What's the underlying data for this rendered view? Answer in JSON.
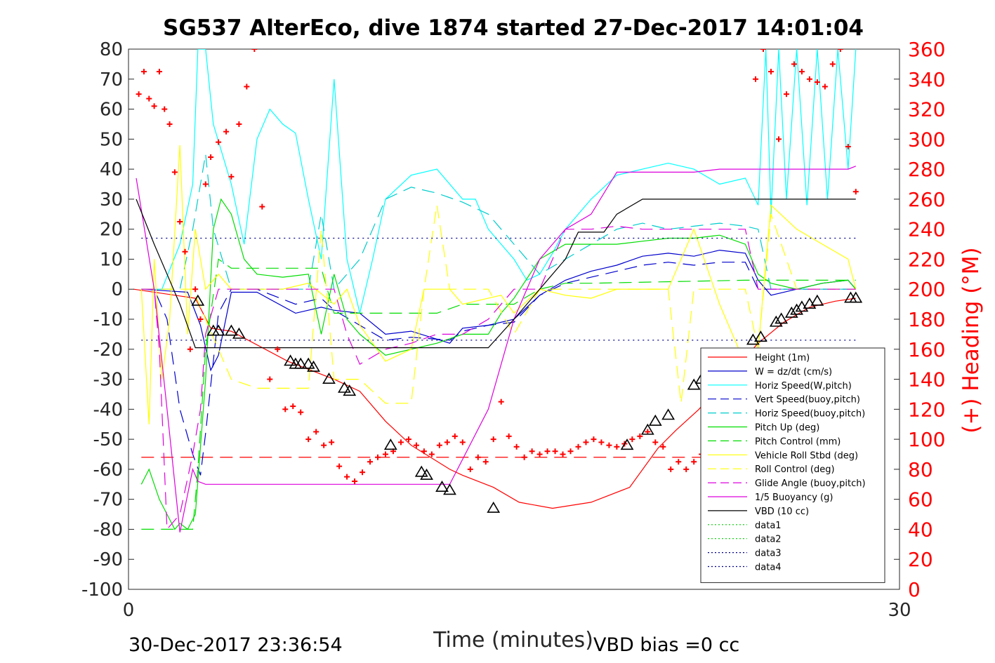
{
  "chart_data": {
    "type": "line",
    "title": "SG537 AlterEco, dive 1874 started 27-Dec-2017 14:01:04",
    "xlabel": "Time (minutes)",
    "ylabel_right": "(+) Heading (°M)",
    "xlim": [
      0,
      30
    ],
    "ylim": [
      -100,
      80
    ],
    "ylim_right": [
      0,
      360
    ],
    "x_ticks": [
      "0",
      "30"
    ],
    "y_ticks": [
      "80",
      "70",
      "60",
      "50",
      "40",
      "30",
      "20",
      "10",
      "0",
      "-10",
      "-20",
      "-30",
      "-40",
      "-50",
      "-60",
      "-70",
      "-80",
      "-90",
      "-100"
    ],
    "y_ticks_right": [
      "360",
      "340",
      "320",
      "300",
      "280",
      "260",
      "240",
      "220",
      "200",
      "180",
      "160",
      "140",
      "120",
      "100",
      "80",
      "60",
      "40",
      "20",
      "0"
    ],
    "footer_left": "30-Dec-2017 23:36:54",
    "footer_right": "VBD bias =0 cc",
    "legend_position": "lower-right",
    "series": [
      {
        "name": "Height (1m)",
        "color": "#ff0000",
        "style": "solid",
        "x": [
          0.2,
          2.6,
          3.2,
          4.0,
          6.2,
          8.0,
          9.0,
          10.0,
          11.0,
          12.5,
          13.0,
          14.2,
          15.2,
          16.5,
          18.0,
          19.5,
          20.6,
          21.3,
          22.2,
          23.2,
          24.5,
          25.5,
          26.5,
          27.5,
          28.3
        ],
        "y": [
          0,
          -3,
          -13,
          -14,
          -24,
          -30,
          -34,
          -44,
          -52,
          -60,
          -62,
          -66,
          -71,
          -73,
          -71,
          -66,
          -53,
          -47,
          -40,
          -30,
          -18,
          -11,
          -6,
          -4,
          -3
        ]
      },
      {
        "name": "W = dz/dt (cm/s)",
        "color": "#0000cc",
        "style": "solid",
        "x": [
          0.5,
          2.3,
          2.8,
          3.2,
          3.5,
          4.0,
          5.0,
          6.5,
          7.5,
          8.0,
          9.0,
          10.0,
          11.0,
          12.5,
          13.0,
          14.0,
          15.0,
          16.0,
          17.0,
          18.0,
          19.0,
          20.0,
          21.0,
          22.0,
          23.0,
          24.0,
          24.5,
          25.0,
          26.0,
          27.0,
          28.0,
          28.3
        ],
        "y": [
          0,
          -1,
          -12,
          -27,
          -22,
          -1,
          -1,
          -8,
          -6,
          -7,
          -8,
          -15,
          -14,
          -18,
          -13,
          -12,
          -10,
          -2,
          3,
          6,
          8,
          11,
          12,
          11,
          13,
          12,
          3,
          -2,
          0,
          2,
          3,
          0
        ]
      },
      {
        "name": "Horiz Speed(W,pitch)",
        "color": "#00ffff",
        "style": "solid",
        "x": [
          0.5,
          1.3,
          2.0,
          2.5,
          2.7,
          3.0,
          3.3,
          4.0,
          4.5,
          5.0,
          5.5,
          6.0,
          6.5,
          7.0,
          7.5,
          8.0,
          8.5,
          9.0,
          9.5,
          10.0,
          11.0,
          12.0,
          13.0,
          13.5,
          14.0,
          14.5,
          15.0,
          15.5,
          16.0,
          16.5,
          17.0,
          18.0,
          19.0,
          20.0,
          21.0,
          22.0,
          23.0,
          24.0,
          24.5,
          24.8,
          25.0,
          25.3,
          25.6,
          26.0,
          26.4,
          26.8,
          27.2,
          27.6,
          28.0,
          28.3
        ],
        "y": [
          0,
          0,
          15,
          35,
          80,
          80,
          55,
          35,
          15,
          50,
          60,
          55,
          52,
          30,
          10,
          70,
          10,
          -8,
          10,
          30,
          38,
          40,
          30,
          30,
          20,
          15,
          10,
          3,
          5,
          12,
          20,
          30,
          38,
          40,
          42,
          40,
          35,
          37,
          28,
          80,
          25,
          80,
          30,
          80,
          28,
          80,
          30,
          80,
          40,
          80
        ]
      },
      {
        "name": "Vert Speed(buoy,pitch)",
        "color": "#0000cc",
        "style": "dashed",
        "x": [
          0.5,
          1.0,
          1.5,
          2.0,
          2.5,
          2.8,
          3.0,
          3.5,
          4.0,
          5.0,
          6.5,
          7.5,
          8.0,
          9.0,
          10.0,
          11.0,
          12.5,
          13.0,
          14.0,
          15.0,
          16.0,
          17.0,
          18.0,
          19.0,
          20.0,
          21.0,
          22.0,
          23.0,
          24.0,
          24.5,
          25.0,
          26.0,
          27.0,
          28.0,
          28.3
        ],
        "y": [
          0,
          0,
          -10,
          -40,
          -55,
          -62,
          -48,
          -8,
          0,
          0,
          -5,
          -3,
          -7,
          -12,
          -17,
          -16,
          -17,
          -14,
          -12,
          -11,
          -2,
          2,
          4,
          6,
          8,
          9,
          8,
          9,
          9,
          0,
          0,
          0,
          0,
          0,
          0
        ]
      },
      {
        "name": "Horiz Speed(buoy,pitch)",
        "color": "#00cccc",
        "style": "dashed",
        "x": [
          0.5,
          2.0,
          2.5,
          3.0,
          3.3,
          4.0,
          6.0,
          7.0,
          7.5,
          8.0,
          9.0,
          9.5,
          10.0,
          11.0,
          12.0,
          13.0,
          14.0,
          14.5,
          15.0,
          16.0,
          17.0,
          18.0,
          19.0,
          20.0,
          21.0,
          22.0,
          23.0,
          24.0,
          24.5,
          25.0,
          26.0,
          27.0,
          28.0,
          28.3
        ],
        "y": [
          0,
          0,
          20,
          45,
          20,
          0,
          0,
          0,
          25,
          0,
          10,
          20,
          30,
          34,
          32,
          29,
          25,
          20,
          15,
          5,
          10,
          15,
          20,
          22,
          20,
          21,
          22,
          21,
          20,
          0,
          0,
          0,
          0,
          0
        ]
      },
      {
        "name": "Pitch Up (deg)",
        "color": "#00dd00",
        "style": "solid",
        "x": [
          0.5,
          0.8,
          1.2,
          1.5,
          1.8,
          2.0,
          2.3,
          2.6,
          3.0,
          3.3,
          3.6,
          4.0,
          4.5,
          5.0,
          6.0,
          7.0,
          7.5,
          8.0,
          8.5,
          9.0,
          10.0,
          11.0,
          12.0,
          13.0,
          14.0,
          14.5,
          15.0,
          16.0,
          17.0,
          18.0,
          19.0,
          20.0,
          21.0,
          22.0,
          23.0,
          24.0,
          24.5,
          25.0,
          26.0,
          27.0,
          28.0,
          28.3
        ],
        "y": [
          -65,
          -60,
          -70,
          -75,
          -80,
          -78,
          -80,
          -75,
          -30,
          20,
          30,
          25,
          10,
          5,
          4,
          5,
          -15,
          5,
          -10,
          -15,
          -22,
          -20,
          -18,
          -15,
          -15,
          -8,
          -3,
          10,
          15,
          15,
          15,
          16,
          17,
          17,
          18,
          15,
          5,
          2,
          0,
          2,
          3,
          0
        ]
      },
      {
        "name": "Pitch Control (mm)",
        "color": "#00dd00",
        "style": "dashed",
        "x": [
          0.5,
          2.5,
          2.7,
          3.0,
          3.5,
          4.0,
          6.0,
          7.5,
          8.0,
          9.0,
          12.0,
          13.0,
          14.0,
          15.0,
          16.0,
          17.0,
          18.0,
          24.0,
          25.0,
          27.0,
          28.3
        ],
        "y": [
          -80,
          -80,
          -60,
          -20,
          10,
          7,
          7,
          7,
          -8,
          -8,
          -8,
          -5,
          -5,
          -5,
          0,
          2,
          2,
          3,
          3,
          3,
          3
        ]
      },
      {
        "name": "Vehicle Roll Stbd (deg)",
        "color": "#ffff00",
        "style": "solid",
        "x": [
          0.5,
          0.8,
          1.0,
          1.3,
          1.6,
          2.0,
          2.3,
          2.6,
          3.0,
          3.5,
          4.0,
          5.0,
          6.0,
          7.0,
          8.0,
          8.5,
          9.0,
          9.5,
          10.0,
          11.0,
          11.5,
          12.0,
          12.5,
          13.0,
          14.0,
          14.5,
          15.0,
          16.0,
          17.0,
          18.0,
          19.0,
          20.0,
          21.0,
          22.0,
          23.0,
          24.0,
          24.5,
          25.0,
          26.0,
          27.0,
          28.0,
          28.3
        ],
        "y": [
          0,
          -45,
          10,
          -30,
          -10,
          48,
          -15,
          20,
          0,
          5,
          0,
          0,
          0,
          2,
          -5,
          0,
          -12,
          -18,
          -24,
          -20,
          0,
          0,
          0,
          -5,
          -3,
          -2,
          -8,
          0,
          -2,
          -3,
          0,
          0,
          0,
          20,
          -5,
          -25,
          -20,
          28,
          20,
          15,
          10,
          0
        ]
      },
      {
        "name": "Roll Control (deg)",
        "color": "#ffff00",
        "style": "dashed",
        "x": [
          0.5,
          2.0,
          2.5,
          3.0,
          3.5,
          4.0,
          5.0,
          6.0,
          7.0,
          7.5,
          8.0,
          9.0,
          10.0,
          11.0,
          11.5,
          12.0,
          12.5,
          13.0,
          14.0,
          15.0,
          16.0,
          17.0,
          18.0,
          19.0,
          20.0,
          21.0,
          21.5,
          22.0,
          23.0,
          24.0,
          24.5,
          25.0,
          26.0,
          27.0,
          28.3
        ],
        "y": [
          0,
          0,
          0,
          -10,
          -20,
          -30,
          -33,
          -33,
          -33,
          20,
          -30,
          -30,
          -38,
          -38,
          0,
          28,
          0,
          0,
          0,
          -15,
          0,
          0,
          0,
          0,
          0,
          0,
          -38,
          0,
          0,
          0,
          -20,
          25,
          0,
          0,
          0
        ]
      },
      {
        "name": "Glide Angle (buoy,pitch)",
        "color": "#dd00dd",
        "style": "dashed",
        "x": [
          0.5,
          1.0,
          1.2,
          1.5,
          2.0,
          2.5,
          2.8,
          3.0,
          3.5,
          4.0,
          8.0,
          8.5,
          9.0,
          10.0,
          11.0,
          12.0,
          13.0,
          14.0,
          15.0,
          16.0,
          17.0,
          18.0,
          19.0,
          20.0,
          21.0,
          22.0,
          23.0,
          24.0,
          24.5,
          25.0,
          27.5,
          28.3
        ],
        "y": [
          0,
          0,
          -20,
          -80,
          -75,
          -55,
          -40,
          -15,
          0,
          0,
          0,
          -15,
          -25,
          -20,
          -18,
          -15,
          -15,
          -10,
          0,
          0,
          20,
          20,
          21,
          20,
          20,
          20,
          20,
          20,
          0,
          0,
          0,
          0
        ]
      },
      {
        "name": "1/5 Buoyancy (g)",
        "color": "#dd00dd",
        "style": "solid",
        "x": [
          0.3,
          1.0,
          1.5,
          2.0,
          2.5,
          2.7,
          3.0,
          4.0,
          6.0,
          8.0,
          10.0,
          12.0,
          12.5,
          14.0,
          15.0,
          16.0,
          17.0,
          18.0,
          19.0,
          20.0,
          21.0,
          22.0,
          23.0,
          24.0,
          25.0,
          26.0,
          27.0,
          28.0,
          28.3
        ],
        "y": [
          37,
          0,
          -40,
          -81,
          -60,
          -64,
          -65,
          -65,
          -65,
          -65,
          -65,
          -65,
          -65,
          -40,
          -10,
          10,
          20,
          25,
          39,
          39,
          39,
          39,
          40,
          40,
          40,
          40,
          40,
          40,
          41
        ]
      },
      {
        "name": "VBD (10 cc)",
        "color": "#000000",
        "style": "solid",
        "x": [
          0.3,
          1.0,
          1.5,
          2.0,
          2.6,
          3.0,
          4.0,
          6.0,
          8.0,
          10.0,
          12.0,
          12.5,
          13.0,
          13.5,
          14.0,
          15.0,
          16.0,
          17.0,
          17.5,
          18.5,
          19.0,
          20.0,
          22.0,
          24.0,
          26.0,
          28.0,
          28.3
        ],
        "y": [
          30,
          15,
          5,
          -5,
          -19.5,
          -19.5,
          -19.5,
          -19.5,
          -19.5,
          -19.5,
          -19.5,
          -19.5,
          -19.5,
          -19.5,
          -19.5,
          -10,
          0,
          10,
          19,
          19,
          25,
          30,
          30,
          30,
          30,
          30,
          30
        ]
      },
      {
        "name": "data1",
        "color": "#00cc00",
        "style": "dotted",
        "x": [],
        "y": []
      },
      {
        "name": "data2",
        "color": "#00cc00",
        "style": "dotted",
        "x": [],
        "y": []
      },
      {
        "name": "data3",
        "color": "#000088",
        "style": "dotted",
        "x": [
          0.5,
          28.3
        ],
        "y": [
          17,
          17
        ]
      },
      {
        "name": "data4",
        "color": "#000088",
        "style": "dotted",
        "x": [
          0.5,
          28.3
        ],
        "y": [
          -17,
          -17
        ]
      }
    ],
    "hlines": [
      {
        "y": -56,
        "color": "#ff0000",
        "style": "dashed"
      }
    ],
    "heading_points": {
      "marker": "+",
      "color": "#ff0000",
      "axis": "right",
      "x": [
        0.4,
        0.6,
        0.8,
        1.0,
        1.2,
        1.4,
        1.6,
        1.8,
        2.0,
        2.2,
        2.4,
        2.6,
        2.8,
        3.0,
        3.2,
        3.5,
        3.8,
        4.0,
        4.3,
        4.6,
        4.9,
        5.2,
        5.5,
        5.8,
        6.1,
        6.4,
        6.7,
        7.0,
        7.3,
        7.6,
        7.9,
        8.2,
        8.5,
        8.8,
        9.1,
        9.4,
        9.7,
        10.0,
        10.3,
        10.6,
        10.9,
        11.2,
        11.5,
        11.8,
        12.1,
        12.4,
        12.7,
        13.0,
        13.3,
        13.6,
        13.9,
        14.2,
        14.5,
        14.8,
        15.1,
        15.4,
        15.7,
        16.0,
        16.3,
        16.6,
        16.9,
        17.2,
        17.5,
        17.8,
        18.1,
        18.4,
        18.7,
        19.0,
        19.3,
        19.6,
        19.9,
        20.2,
        20.5,
        20.8,
        21.1,
        21.4,
        21.7,
        22.0,
        22.3,
        22.6,
        22.9,
        23.2,
        23.5,
        23.8,
        24.1,
        24.4,
        24.7,
        25.0,
        25.3,
        25.6,
        25.9,
        26.2,
        26.5,
        26.8,
        27.1,
        27.4,
        27.7,
        28.0,
        28.3
      ],
      "y": [
        330,
        345,
        327,
        322,
        345,
        320,
        310,
        278,
        245,
        225,
        160,
        200,
        180,
        270,
        288,
        298,
        305,
        275,
        310,
        335,
        360,
        255,
        140,
        160,
        120,
        122,
        118,
        100,
        105,
        96,
        98,
        82,
        75,
        72,
        78,
        85,
        88,
        90,
        92,
        98,
        100,
        96,
        92,
        90,
        96,
        98,
        102,
        98,
        80,
        88,
        85,
        100,
        125,
        102,
        95,
        88,
        92,
        90,
        92,
        92,
        90,
        92,
        95,
        98,
        100,
        98,
        96,
        95,
        97,
        100,
        102,
        105,
        98,
        95,
        80,
        85,
        80,
        85,
        90,
        85,
        82,
        92,
        110,
        105,
        98,
        340,
        360,
        345,
        300,
        330,
        350,
        345,
        340,
        338,
        335,
        350,
        360,
        295,
        265
      ]
    },
    "triangle_markers": {
      "x": [
        2.7,
        3.3,
        3.5,
        4.0,
        4.3,
        6.3,
        6.5,
        6.7,
        7.0,
        7.2,
        7.8,
        8.4,
        8.6,
        10.2,
        11.4,
        11.6,
        12.2,
        12.5,
        14.2,
        19.4,
        20.2,
        20.5,
        21.0,
        22.0,
        22.3,
        23.2,
        23.4,
        23.8,
        24.3,
        24.6,
        25.2,
        25.4,
        25.8,
        26.0,
        26.2,
        26.5,
        26.8,
        28.1,
        28.3
      ],
      "y": [
        -4,
        -14,
        -14,
        -14,
        -15,
        -24,
        -25,
        -25,
        -25,
        -26,
        -30,
        -33,
        -34,
        -52,
        -61,
        -62,
        -66,
        -67,
        -73,
        -52,
        -47,
        -44,
        -42,
        -32,
        -30,
        -28,
        -26,
        -24,
        -17,
        -16,
        -11,
        -10,
        -8,
        -7,
        -6,
        -5,
        -4,
        -3,
        -3
      ]
    }
  }
}
